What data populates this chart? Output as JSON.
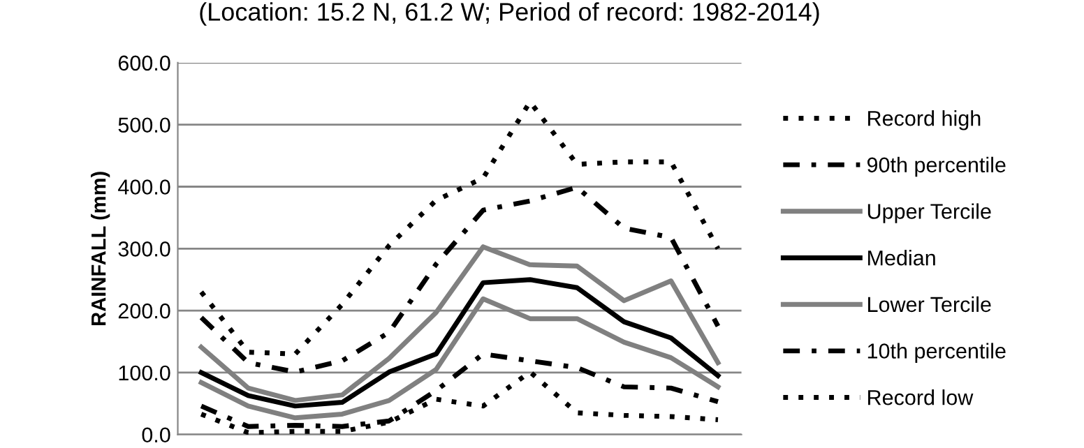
{
  "chart_data": {
    "type": "line",
    "title": "(Location: 15.2 N, 61.2 W; Period of record: 1982-2014)",
    "ylabel": "RAINFALL (mm)",
    "categories": [
      null,
      null,
      null,
      null,
      null,
      null,
      null,
      null,
      null,
      null,
      null,
      null
    ],
    "series": [
      {
        "name": "Record high",
        "color": "#000000",
        "line_style": "dotted",
        "values": [
          230,
          133,
          130,
          210,
          305,
          378,
          414,
          537,
          436,
          440,
          440,
          300
        ]
      },
      {
        "name": "90th percentile",
        "color": "#000000",
        "line_style": "dashdot",
        "values": [
          189,
          116,
          101,
          119,
          165,
          275,
          362,
          377,
          399,
          333,
          318,
          175
        ]
      },
      {
        "name": "Upper Tercile",
        "color": "#808080",
        "line_style": "solid",
        "values": [
          141,
          75,
          55,
          64,
          123,
          197,
          303,
          274,
          272,
          216,
          248,
          116
        ]
      },
      {
        "name": "Median",
        "color": "#000000",
        "line_style": "solid",
        "values": [
          100,
          63,
          46,
          52,
          101,
          130,
          245,
          250,
          237,
          182,
          156,
          95
        ]
      },
      {
        "name": "Lower Tercile",
        "color": "#808080",
        "line_style": "solid",
        "values": [
          84,
          46,
          27,
          33,
          55,
          105,
          219,
          187,
          187,
          149,
          124,
          77
        ]
      },
      {
        "name": "10th percentile",
        "color": "#000000",
        "line_style": "dashdot",
        "values": [
          46,
          13,
          15,
          13,
          22,
          71,
          130,
          119,
          108,
          77,
          75,
          53
        ]
      },
      {
        "name": "Record low",
        "color": "#000000",
        "line_style": "dotted",
        "values": [
          33,
          3,
          5,
          5,
          20,
          57,
          46,
          101,
          35,
          31,
          29,
          24
        ]
      }
    ],
    "ylim": [
      0,
      600
    ],
    "yticks": [
      {
        "value": 0,
        "label": "0.0"
      },
      {
        "value": 100,
        "label": "100.0"
      },
      {
        "value": 200,
        "label": "200.0"
      },
      {
        "value": 300,
        "label": "300.0"
      },
      {
        "value": 400,
        "label": "400.0"
      },
      {
        "value": 500,
        "label": "500.0"
      },
      {
        "value": 600,
        "label": "600.0"
      }
    ],
    "grid": "y",
    "legend": "right",
    "marker": "none"
  }
}
